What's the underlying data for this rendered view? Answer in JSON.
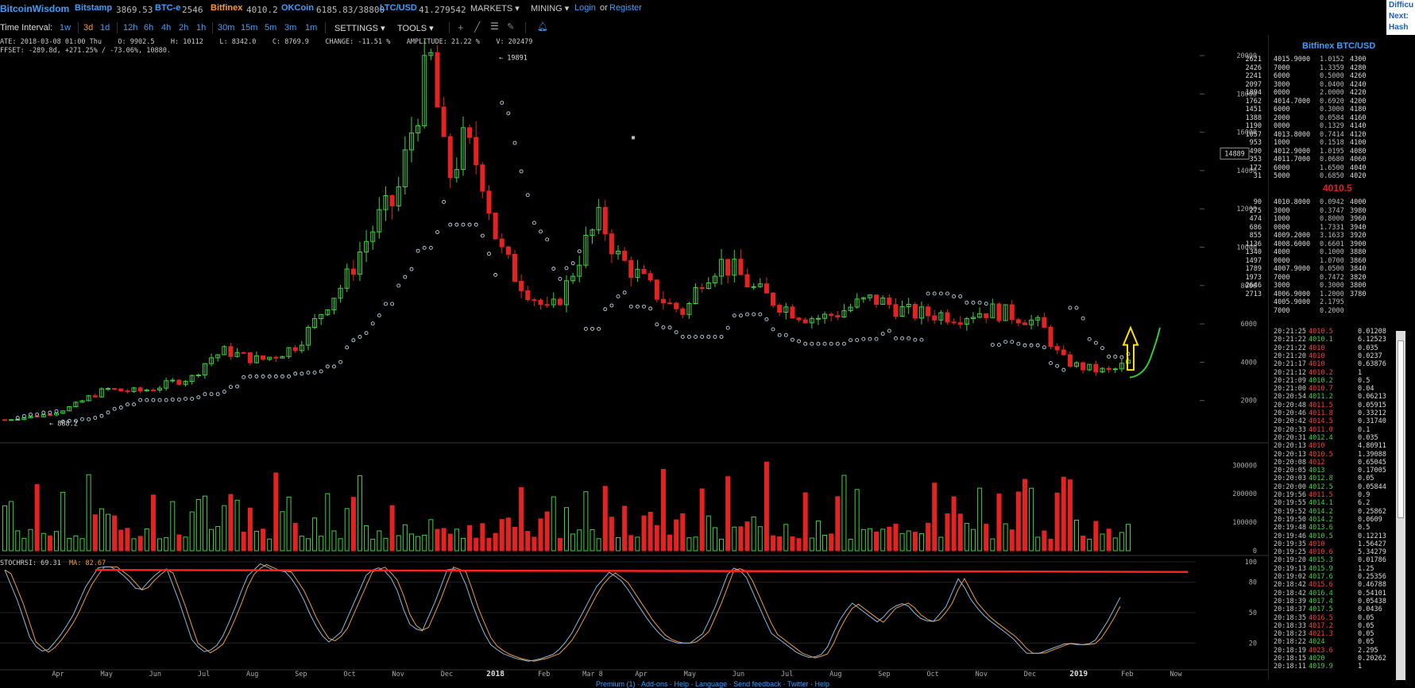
{
  "topbar": {
    "brand": "BitcoinWisdom",
    "exchanges": [
      {
        "name": "Bitstamp",
        "value": "3869.53",
        "active": false
      },
      {
        "name": "BTC-e",
        "value": "2546",
        "active": false
      },
      {
        "name": "Bitfinex",
        "value": "4010.2",
        "active": true
      },
      {
        "name": "OKCoin",
        "value": "6185.83/38800",
        "active": false
      },
      {
        "name": "LTC/USD",
        "value": "41.279542",
        "active": false
      }
    ],
    "markets": "MARKETS",
    "mining": "MINING",
    "login": "Login",
    "or": "or",
    "register": "Register",
    "difficulty_lines": [
      "Difficu",
      "Next:",
      "Hash R"
    ]
  },
  "interval_bar": {
    "label": "Time Interval:",
    "intervals": [
      "1w",
      "3d",
      "1d",
      "12h",
      "6h",
      "4h",
      "2h",
      "1h",
      "30m",
      "15m",
      "5m",
      "3m",
      "1m"
    ],
    "selected": "3d",
    "settings": "SETTINGS",
    "tools": "TOOLS",
    "tool_icons": [
      "crosshair-icon",
      "line-tool-icon",
      "fib-tool-icon",
      "brush-tool-icon",
      "alert-bell-icon"
    ]
  },
  "info": {
    "line1": "ATE: 2018-03-08 01:00 Thu    O: 9902.5    H: 10112    L: 8342.0    C: 8769.9    CHANGE: -11.51 %    AMPLITUDE: 21.22 %    V: 202479",
    "line2": "FFSET: -289.8d, +271.25% / -73.06%, 10880."
  },
  "chart_data": [
    {
      "type": "candlestick",
      "title": "",
      "y_ticks": [
        2000,
        4000,
        6000,
        8000,
        10000,
        12000,
        14000,
        16000,
        18000,
        20000
      ],
      "ylim": [
        0,
        20500
      ],
      "x_ticks": [
        "Apr",
        "May",
        "Jun",
        "Jul",
        "Aug",
        "Sep",
        "Oct",
        "Nov",
        "Dec",
        "2018",
        "Feb",
        "Mar 8",
        "Apr",
        "May",
        "Jun",
        "Jul",
        "Aug",
        "Sep",
        "Oct",
        "Nov",
        "Dec",
        "2019",
        "Feb",
        "Now"
      ],
      "annotations": {
        "peak_label": "19891",
        "low_label": "888.2",
        "crosshair_price": "14889"
      },
      "price_path": [
        1000,
        1100,
        1200,
        1400,
        1700,
        2200,
        2600,
        2500,
        2500,
        2700,
        3000,
        3200,
        4200,
        4600,
        4300,
        4100,
        4400,
        4800,
        5800,
        7200,
        8200,
        10000,
        11500,
        12500,
        16500,
        19891,
        13500,
        15500,
        14000,
        10000,
        8500,
        7500,
        6500,
        8000,
        10000,
        11500,
        9500,
        8700,
        7800,
        7000,
        6600,
        8500,
        9200,
        8700,
        7800,
        7300,
        6800,
        6400,
        6300,
        6600,
        7000,
        7300,
        7000,
        6600,
        6500,
        6500,
        6400,
        6600,
        6700,
        6500,
        6300,
        5800,
        4200,
        3800,
        3600,
        3500,
        4000
      ]
    },
    {
      "type": "bar",
      "title": "",
      "name": "volume",
      "y_ticks": [
        0,
        100000,
        200000,
        300000
      ],
      "ylim": [
        0,
        340000
      ]
    },
    {
      "type": "line",
      "title": "",
      "label": "STOCHRSI: 69.31",
      "ma_label": "MA: 82.67",
      "y_ticks": [
        20,
        50,
        80,
        100
      ],
      "ylim": [
        0,
        100
      ],
      "series_path": [
        92,
        60,
        20,
        10,
        25,
        45,
        75,
        95,
        95,
        85,
        70,
        85,
        95,
        60,
        20,
        10,
        20,
        50,
        85,
        98,
        92,
        90,
        70,
        40,
        20,
        30,
        60,
        90,
        95,
        80,
        40,
        30,
        60,
        95,
        90,
        50,
        20,
        10,
        5,
        2,
        5,
        10,
        25,
        50,
        75,
        90,
        80,
        60,
        40,
        25,
        20,
        20,
        30,
        60,
        95,
        90,
        60,
        30,
        20,
        10,
        5,
        10,
        40,
        60,
        50,
        40,
        55,
        60,
        45,
        40,
        55,
        85,
        60,
        45,
        35,
        25,
        10,
        10,
        15,
        20,
        18,
        20,
        40,
        65
      ]
    }
  ],
  "side": {
    "title": "Bitfinex BTC/USD",
    "last_price": "4010.5",
    "asks": [
      [
        "4015.9000",
        "1.0152",
        "4300",
        "2621"
      ],
      [
        "7000",
        "1.3359",
        "4280",
        "2426"
      ],
      [
        "6000",
        "0.5000",
        "4260",
        "2241"
      ],
      [
        "3000",
        "0.0400",
        "4240",
        "2097"
      ],
      [
        "0000",
        "2.0000",
        "4220",
        "1894"
      ],
      [
        "4014.7000",
        "0.6920",
        "4200",
        "1762"
      ],
      [
        "6000",
        "0.3000",
        "4180",
        "1451"
      ],
      [
        "2000",
        "0.0584",
        "4160",
        "1388"
      ],
      [
        "0000",
        "0.1329",
        "4140",
        "1190"
      ],
      [
        "4013.8000",
        "0.7414",
        "4120",
        "1057"
      ],
      [
        "1000",
        "0.1518",
        "4100",
        "953"
      ],
      [
        "4012.9000",
        "1.0195",
        "4080",
        "490"
      ],
      [
        "4011.7000",
        "0.0680",
        "4060",
        "353"
      ],
      [
        "6000",
        "1.6500",
        "4040",
        "172"
      ],
      [
        "5000",
        "0.6850",
        "4020",
        "31"
      ]
    ],
    "bids": [
      [
        "4010.8000",
        "0.0942",
        "4000",
        "90"
      ],
      [
        "3000",
        "0.3747",
        "3980",
        "275"
      ],
      [
        "1000",
        "0.8000",
        "3960",
        "474"
      ],
      [
        "0000",
        "1.7331",
        "3940",
        "686"
      ],
      [
        "4009.2000",
        "3.1633",
        "3920",
        "855"
      ],
      [
        "4008.6000",
        "0.6601",
        "3900",
        "1136"
      ],
      [
        "4000",
        "0.1000",
        "3880",
        "1340"
      ],
      [
        "0000",
        "1.0700",
        "3860",
        "1497"
      ],
      [
        "4007.9000",
        "0.0500",
        "3840",
        "1789"
      ],
      [
        "7000",
        "0.7472",
        "3820",
        "1973"
      ],
      [
        "3000",
        "0.3000",
        "3800",
        "2646"
      ],
      [
        "4006.9000",
        "1.2000",
        "3780",
        "2713"
      ],
      [
        "4005.9000",
        "2.1795",
        "",
        ""
      ],
      [
        "7000",
        "0.2000",
        "",
        ""
      ]
    ],
    "trades": [
      [
        "20:21:25",
        "4010.5",
        "0.01208",
        "dn"
      ],
      [
        "20:21:22",
        "4010.1",
        "6.12523",
        "up"
      ],
      [
        "20:21:22",
        "4010",
        "0.035",
        "dn"
      ],
      [
        "20:21:20",
        "4010",
        "0.0237",
        "dn"
      ],
      [
        "20:21:17",
        "4010",
        "0.63876",
        "dn"
      ],
      [
        "20:21:12",
        "4010.2",
        "1",
        "dn"
      ],
      [
        "20:21:09",
        "4010.2",
        "0.5",
        "up"
      ],
      [
        "20:21:00",
        "4010.7",
        "0.04",
        "dn"
      ],
      [
        "20:20:54",
        "4011.2",
        "0.06213",
        "up"
      ],
      [
        "20:20:48",
        "4011.5",
        "0.05915",
        "dn"
      ],
      [
        "20:20:46",
        "4011.8",
        "0.33212",
        "dn"
      ],
      [
        "20:20:42",
        "4014.5",
        "0.31740",
        "dn"
      ],
      [
        "20:20:33",
        "4011.0",
        "0.1",
        "dn"
      ],
      [
        "20:20:31",
        "4012.4",
        "0.035",
        "up"
      ],
      [
        "20:20:13",
        "4010",
        "4.80911",
        "dn"
      ],
      [
        "20:20:13",
        "4010.5",
        "1.39088",
        "dn"
      ],
      [
        "20:20:08",
        "4012",
        "0.65045",
        "dn"
      ],
      [
        "20:20:05",
        "4013",
        "0.17005",
        "up"
      ],
      [
        "20:20:03",
        "4012.8",
        "0.05",
        "up"
      ],
      [
        "20:20:00",
        "4012.5",
        "0.05844",
        "up"
      ],
      [
        "20:19:56",
        "4011.5",
        "0.9",
        "dn"
      ],
      [
        "20:19:55",
        "4014.1",
        "6.2",
        "up"
      ],
      [
        "20:19:52",
        "4014.2",
        "0.25862",
        "up"
      ],
      [
        "20:19:50",
        "4014.2",
        "0.0609",
        "up"
      ],
      [
        "20:19:48",
        "4013.6",
        "0.5",
        "up"
      ],
      [
        "20:19:46",
        "4010.5",
        "0.12213",
        "up"
      ],
      [
        "20:19:35",
        "4010",
        "1.56427",
        "dn"
      ],
      [
        "20:19:25",
        "4010.6",
        "5.34279",
        "dn"
      ],
      [
        "20:19:20",
        "4015.3",
        "0.01786",
        "up"
      ],
      [
        "20:19:13",
        "4015.9",
        "1.25",
        "up"
      ],
      [
        "20:19:02",
        "4017.6",
        "0.25356",
        "up"
      ],
      [
        "20:18:42",
        "4015.6",
        "0.46788",
        "dn"
      ],
      [
        "20:18:42",
        "4016.4",
        "0.54101",
        "up"
      ],
      [
        "20:18:39",
        "4017.4",
        "0.05438",
        "up"
      ],
      [
        "20:18:37",
        "4017.5",
        "0.0436",
        "up"
      ],
      [
        "20:18:35",
        "4016.5",
        "0.05",
        "dn"
      ],
      [
        "20:18:33",
        "4017.2",
        "0.05",
        "dn"
      ],
      [
        "20:18:23",
        "4021.3",
        "0.05",
        "dn"
      ],
      [
        "20:18:22",
        "4024",
        "0.05",
        "up"
      ],
      [
        "20:18:19",
        "4023.6",
        "2.295",
        "dn"
      ],
      [
        "20:18:15",
        "4020",
        "0.20262",
        "up"
      ],
      [
        "20:18:11",
        "4019.9",
        "1",
        "up"
      ]
    ]
  },
  "footer": "Premium (1) · Add-ons · Help · Language · Send feedback · Twitter · Help"
}
